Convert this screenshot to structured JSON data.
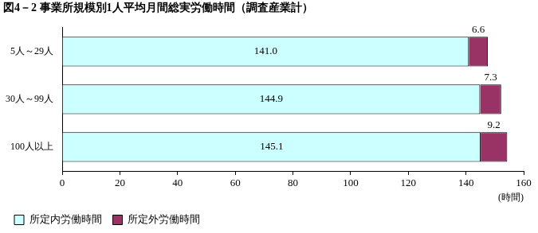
{
  "chart_data": {
    "type": "bar",
    "orientation": "horizontal",
    "stacked": true,
    "title": "図4－2 事業所規模別1人平均月間総実労働時間（調査産業計）",
    "categories": [
      "5人～29人",
      "30人～99人",
      "100人以上"
    ],
    "series": [
      {
        "name": "所定内労働時間",
        "color": "#ccffff",
        "values": [
          141.0,
          144.9,
          145.1
        ],
        "value_labels": [
          "141.0",
          "144.9",
          "145.1"
        ]
      },
      {
        "name": "所定外労働時間",
        "color": "#993366",
        "values": [
          6.6,
          7.3,
          9.2
        ]
      }
    ],
    "xlim": [
      0,
      160
    ],
    "xticks": [
      0,
      20,
      40,
      60,
      80,
      100,
      120,
      140,
      160
    ],
    "xlabel": "(時間)",
    "grid": false,
    "legend": "bottom",
    "data_labels": true
  }
}
